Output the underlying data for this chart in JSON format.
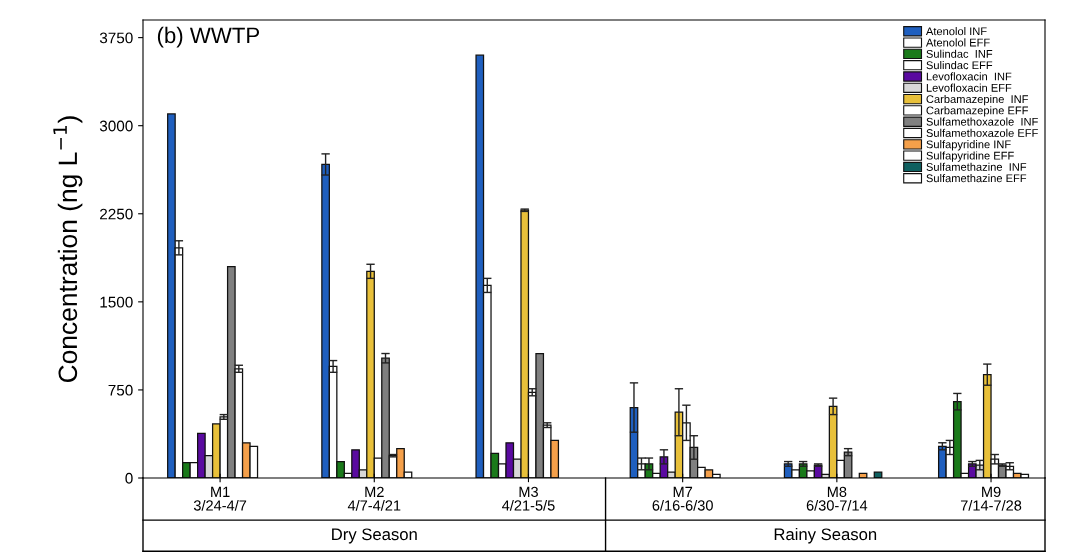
{
  "chart_data": {
    "type": "bar",
    "title": "(b) WWTP",
    "ylabel": "Concentration (ng L$^{−1}$)",
    "categories": [
      "M1\n3/24-4/7",
      "M2\n4/7-4/21",
      "M3\n4/21-5/5",
      "M7\n6/16-6/30",
      "M8\n6/30-7/14",
      "M9\n7/14-7/28"
    ],
    "annotations": [
      "Dry Season",
      "Rainy Season"
    ],
    "ylim": [
      0,
      3900
    ],
    "yticks": [
      0,
      750,
      1500,
      2250,
      3000,
      3750
    ],
    "grid": false,
    "legend": "top right",
    "series": [
      {
        "name": "Atenolol INF",
        "color": "#1f5fbf",
        "values": [
          3100,
          2670,
          3600,
          600,
          120,
          270
        ],
        "errors": [
          null,
          90,
          null,
          210,
          20,
          30
        ]
      },
      {
        "name": "Atenolol EFF",
        "color": "#ffffff",
        "values": [
          1960,
          950,
          1640,
          120,
          70,
          260
        ],
        "errors": [
          60,
          50,
          60,
          50,
          null,
          60
        ]
      },
      {
        "name": "Sulindac  INF",
        "color": "#1a7a1a",
        "values": [
          130,
          140,
          210,
          120,
          120,
          650
        ],
        "errors": [
          null,
          null,
          null,
          50,
          20,
          70
        ]
      },
      {
        "name": "Sulindac EFF",
        "color": "#ffffff",
        "values": [
          130,
          40,
          120,
          40,
          60,
          40
        ]
      },
      {
        "name": "Levofloxacin  INF",
        "color": "#5a0aa0",
        "values": [
          380,
          240,
          300,
          180,
          110,
          120
        ],
        "errors": [
          null,
          null,
          null,
          60,
          10,
          20
        ]
      },
      {
        "name": "Levofloxacin EFF",
        "color": "#d8d8d8",
        "values": [
          190,
          70,
          160,
          50,
          30,
          110
        ],
        "errors": [
          null,
          null,
          null,
          null,
          null,
          40
        ]
      },
      {
        "name": "Carbamazepine  INF",
        "color": "#e8c03a",
        "values": [
          460,
          1760,
          2280,
          560,
          610,
          880
        ],
        "errors": [
          null,
          60,
          10,
          200,
          70,
          90
        ]
      },
      {
        "name": "Carbamazepine EFF",
        "color": "#ffffff",
        "values": [
          520,
          170,
          730,
          470,
          150,
          160
        ],
        "errors": [
          20,
          null,
          30,
          150,
          null,
          40
        ]
      },
      {
        "name": "Sulfamethoxazole  INF",
        "color": "#808080",
        "values": [
          1800,
          1020,
          1060,
          260,
          220,
          110
        ],
        "errors": [
          null,
          40,
          null,
          100,
          30,
          10
        ]
      },
      {
        "name": "Sulfamethoxazole EFF",
        "color": "#ffffff",
        "values": [
          930,
          190,
          450,
          90,
          null,
          100
        ],
        "errors": [
          30,
          10,
          20,
          null,
          null,
          30
        ]
      },
      {
        "name": "Sulfapyridine INF",
        "color": "#f5a04a",
        "values": [
          300,
          250,
          320,
          70,
          40,
          40
        ]
      },
      {
        "name": "Sulfapyridine EFF",
        "color": "#ffffff",
        "values": [
          270,
          50,
          null,
          30,
          null,
          30
        ]
      },
      {
        "name": "Sulfamethazine  INF",
        "color": "#0f6060",
        "values": [
          null,
          null,
          null,
          null,
          50,
          null
        ]
      },
      {
        "name": "Sulfamethazine EFF",
        "color": "#ffffff",
        "values": [
          null,
          null,
          null,
          null,
          null,
          null
        ]
      }
    ]
  }
}
